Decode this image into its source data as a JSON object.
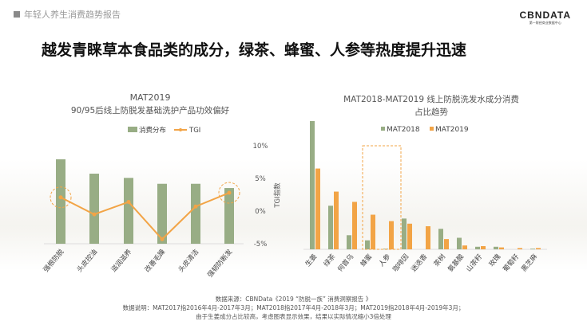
{
  "header": {
    "section": "年轻人养生消费趋势报告",
    "logo": "CBNDATA",
    "logo_sub": "第一财经商业数据中心"
  },
  "title": "越发青睐草本食品类的成分，绿茶、蜂蜜、人参等热度提升迅速",
  "colors": {
    "green": "#98ad85",
    "orange": "#f2a446"
  },
  "chart_data": [
    {
      "type": "bar+line",
      "title": "MAT2019",
      "subtitle": "90/95后线上防脱发基础洗护产品功效偏好",
      "categories": [
        "强根防脱",
        "头皮控油",
        "滋润滋养",
        "改善毛躁",
        "头皮清洁",
        "强韧防断发"
      ],
      "series": [
        {
          "name": "消费分布",
          "type": "bar",
          "values": [
            100,
            83,
            78,
            71,
            71,
            66
          ]
        },
        {
          "name": "TGI",
          "type": "line",
          "values": [
            2.1,
            -0.5,
            1.4,
            -4.3,
            0.7,
            2.8
          ]
        }
      ],
      "y2label": "TGI指数",
      "y2ticks": [
        "10%",
        "5%",
        "0%",
        "-5%"
      ],
      "y2lim": [
        -5,
        10
      ],
      "highlighted": [
        "强根防脱",
        "强韧防断发"
      ]
    },
    {
      "type": "bar",
      "title": "MAT2018-MAT2019 线上防脱洗发水成分消费",
      "subtitle": "占比趋势",
      "categories": [
        "生姜",
        "绿茶",
        "何首乌",
        "蜂蜜",
        "人参",
        "咖啡因",
        "迷迭香",
        "茶树",
        "氨基酸",
        "山茶籽",
        "玫瑰",
        "葡萄籽",
        "黑芝麻"
      ],
      "series": [
        {
          "name": "MAT2018",
          "values": [
            100,
            34,
            11,
            7,
            0.5,
            24,
            0,
            16,
            9,
            2,
            2,
            0,
            0.5
          ]
        },
        {
          "name": "MAT2019",
          "values": [
            63,
            45,
            37,
            27,
            22,
            20,
            18,
            8,
            3,
            2.5,
            1.5,
            1,
            1
          ]
        }
      ],
      "highlighted": [
        "蜂蜜",
        "人参"
      ]
    }
  ],
  "footer": {
    "source": "数据来源：CBNData《2019 “防脱一族” 消费洞察报告 》",
    "note": "数据说明：MAT2017指2016年4月-2017年3月；MAT2018指2017年4月-2018年3月；MAT2019指2018年4月-2019年3月；",
    "note2": "由于生姜成分占比较高，考虑图表显示效果，结果以实际情况缩小3倍处理"
  }
}
